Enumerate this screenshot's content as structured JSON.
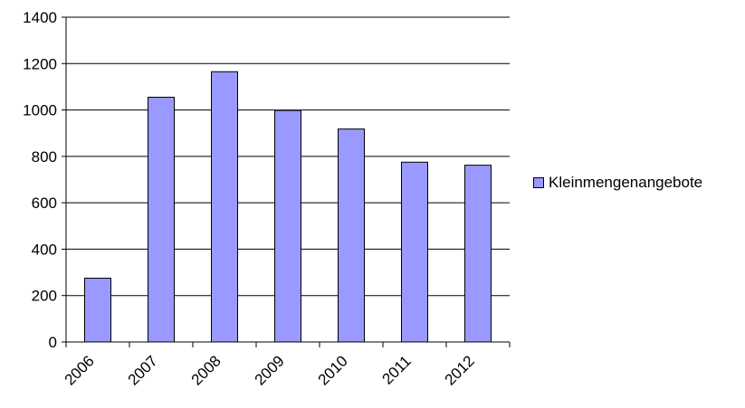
{
  "chart_data": {
    "type": "bar",
    "categories": [
      "2006",
      "2007",
      "2008",
      "2009",
      "2010",
      "2011",
      "2012"
    ],
    "series": [
      {
        "name": "Kleinmengenangebote",
        "values": [
          275,
          1055,
          1165,
          998,
          918,
          775,
          762
        ]
      }
    ],
    "ylim": [
      0,
      1400
    ],
    "yticks": [
      0,
      200,
      400,
      600,
      800,
      1000,
      1200,
      1400
    ],
    "grid": true,
    "legend": "right",
    "colors": {
      "bar": "#9999ff",
      "bar_border": "#000000",
      "grid": "#000000",
      "axis": "#000000",
      "text": "#000000"
    }
  }
}
